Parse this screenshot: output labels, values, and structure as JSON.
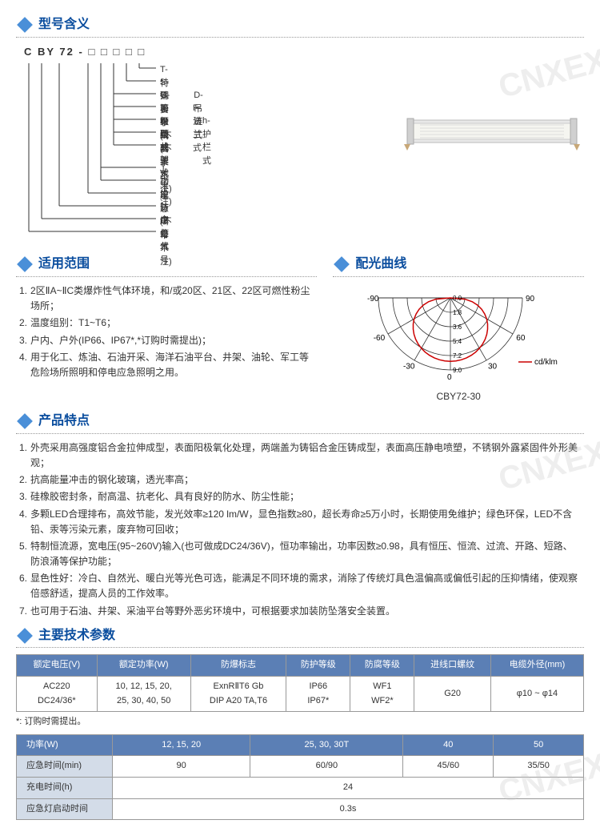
{
  "watermark": "CNXEX",
  "sections": {
    "model": "型号含义",
    "scope": "适用范围",
    "curve": "配光曲线",
    "features": "产品特点",
    "params": "主要技术参数"
  },
  "model_code": "C BY 72  - □ □ □ □ □",
  "bracket_labels": {
    "r1a": "T-特殊要求(不要求不注)",
    "r2a": "S-钢管布线(不要求不注)",
    "r3a": "G-吊杆式",
    "r3b": "D-吊链式",
    "r4a": "X-吸顶式",
    "r4b": "F-法兰式",
    "r5a": "B-壁式",
    "r5b": "h-护栏式",
    "r6a": "Z-井架式",
    "r7a": "J-带应急(不带不注)",
    "r8a": "功率",
    "r9a": "设计序号",
    "r10a": "防爆灯具",
    "r11a": "企业代号"
  },
  "scope_items": [
    "2区ⅡA~ⅡC类爆炸性气体环境，和/或20区、21区、22区可燃性粉尘场所；",
    "温度组别：T1~T6；",
    "户内、户外(IP66、IP67*,*订购时需提出)；",
    "用于化工、炼油、石油开采、海洋石油平台、井架、油轮、军工等危险场所照明和停电应急照明之用。"
  ],
  "curve": {
    "angles_left": [
      "-90",
      "-60",
      "-30",
      "0"
    ],
    "angles_right": [
      "0",
      "30",
      "60",
      "90"
    ],
    "radii": [
      "0.0",
      "1.8",
      "3.6",
      "5.4",
      "7.2",
      "9.0"
    ],
    "legend": "cd/klm",
    "caption": "CBY72-30",
    "colors": {
      "grid": "#333333",
      "curve": "#cc0000",
      "legend_line": "#cc0000"
    }
  },
  "feature_items": [
    "外壳采用高强度铝合金拉伸成型，表面阳极氧化处理，两端盖为铸铝合金压铸成型，表面高压静电喷塑，不锈钢外露紧固件外形美观；",
    "抗高能量冲击的钢化玻璃，透光率高；",
    "硅橡胶密封条，耐高温、抗老化、具有良好的防水、防尘性能；",
    "多颗LED合理排布，高效节能，发光效率≥120 lm/W，显色指数≥80，超长寿命≥5万小时，长期使用免维护；绿色环保，LED不含铅、汞等污染元素，废弃物可回收；",
    "特制恒流源，宽电压(95~260V)输入(也可做成DC24/36V)，恒功率输出，功率因数≥0.98，具有恒压、恒流、过流、开路、短路、防浪涌等保护功能；",
    "显色性好：冷白、自然光、暖白光等光色可选，能满足不同环境的需求，消除了传统灯具色温偏高或偏低引起的压抑情绪，使观察倍感舒适，提高人员的工作效率。",
    "也可用于石油、井架、采油平台等野外恶劣环境中，可根据要求加装防坠落安全装置。"
  ],
  "table1": {
    "headers": [
      "额定电压(V)",
      "额定功率(W)",
      "防爆标志",
      "防护等级",
      "防腐等级",
      "进线口螺纹",
      "电缆外径(mm)"
    ],
    "row": [
      "AC220\nDC24/36*",
      "10, 12, 15, 20,\n25, 30, 40, 50",
      "ExnRⅡT6 Gb\nDIP A20 TA,T6",
      "IP66\nIP67*",
      "WF1\nWF2*",
      "G20",
      "φ10 ~ φ14"
    ],
    "note": "*: 订购时需提出。"
  },
  "table2": {
    "headers": [
      "功率(W)",
      "12, 15, 20",
      "25, 30, 30T",
      "40",
      "50"
    ],
    "rows": [
      {
        "label": "应急时间(min)",
        "cells": [
          "90",
          "60/90",
          "45/60",
          "35/50"
        ]
      },
      {
        "label": "充电时间(h)",
        "cells_merged": "24"
      },
      {
        "label": "应急灯启动时间",
        "cells_merged": "0.3s"
      }
    ]
  },
  "colors": {
    "header_blue": "#5b7fb5",
    "title_blue": "#0a4d9e",
    "diamond": "#4a8fd8",
    "cell_blue": "#d3dce8"
  }
}
